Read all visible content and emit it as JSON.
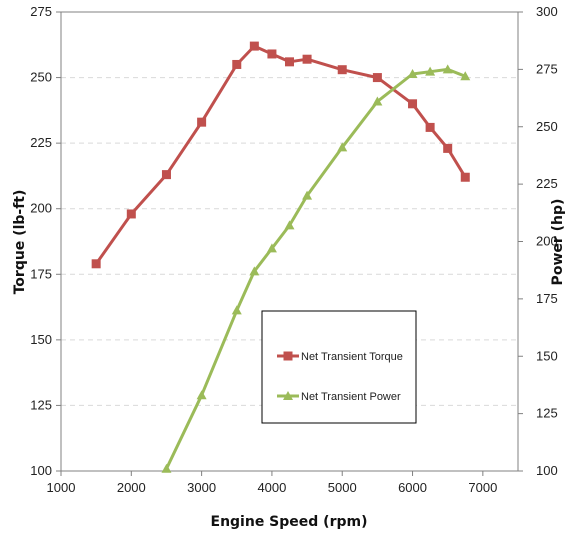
{
  "chart_data": {
    "type": "line",
    "title": "",
    "xlabel": "Engine Speed (rpm)",
    "ylabel_left": "Torque (lb-ft)",
    "ylabel_right": "Power (hp)",
    "xlim": [
      1000,
      7500
    ],
    "ylim_left": [
      100,
      275
    ],
    "ylim_right": [
      100,
      300
    ],
    "xticks": [
      1000,
      2000,
      3000,
      4000,
      5000,
      6000,
      7000
    ],
    "yticks_left": [
      100,
      125,
      150,
      175,
      200,
      225,
      250,
      275
    ],
    "yticks_right": [
      100,
      125,
      150,
      175,
      200,
      225,
      250,
      275,
      300
    ],
    "grid": "horizontal dashed",
    "legend_position": "center",
    "series": [
      {
        "name": "Net Transient Torque",
        "axis": "left",
        "color": "#c0504d",
        "marker": "square",
        "x": [
          1500,
          2000,
          2500,
          3000,
          3500,
          3750,
          4000,
          4250,
          4500,
          5000,
          5500,
          6000,
          6250,
          6500,
          6750
        ],
        "y": [
          179,
          198,
          213,
          233,
          255,
          262,
          259,
          256,
          257,
          253,
          250,
          240,
          231,
          223,
          212
        ]
      },
      {
        "name": "Net Transient Power",
        "axis": "right",
        "color": "#9bbb59",
        "marker": "triangle",
        "x": [
          2500,
          3000,
          3500,
          3750,
          4000,
          4250,
          4500,
          5000,
          5500,
          6000,
          6250,
          6500,
          6750
        ],
        "y": [
          101,
          133,
          170,
          187,
          197,
          207,
          220,
          241,
          261,
          273,
          274,
          275,
          272
        ]
      }
    ]
  }
}
